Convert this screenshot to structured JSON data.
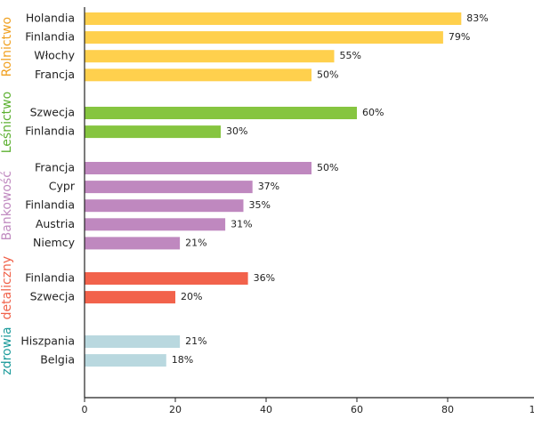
{
  "chart_data": {
    "type": "bar",
    "series": [
      {
        "name": "Rolnictwo",
        "color": "#ffd04d",
        "label_color": "#f0a020",
        "categories": [
          "Holandia",
          "Finlandia",
          "Włochy",
          "Francja"
        ],
        "values": [
          83,
          79,
          55,
          50
        ],
        "value_labels": [
          "83%",
          "79%",
          "55%",
          "50%"
        ]
      },
      {
        "name": "Leśnictwo",
        "color": "#86c540",
        "label_color": "#5cb030",
        "categories": [
          "Szwecja",
          "Finlandia"
        ],
        "values": [
          60,
          30
        ],
        "value_labels": [
          "60%",
          "30%"
        ]
      },
      {
        "name": "Bankowość",
        "color": "#bf88bf",
        "label_color": "#c08ac0",
        "categories": [
          "Francja",
          "Cypr",
          "Finlandia",
          "Austria",
          "Niemcy"
        ],
        "values": [
          50,
          37,
          35,
          31,
          21
        ],
        "value_labels": [
          "50%",
          "37%",
          "35%",
          "31%",
          "21%"
        ]
      },
      {
        "name": "detaliczny",
        "color": "#f2624b",
        "label_color": "#f0624a",
        "categories": [
          "Finlandia",
          "Szwecja"
        ],
        "values": [
          36,
          20
        ],
        "value_labels": [
          "36%",
          "20%"
        ]
      },
      {
        "name": "zdrowia",
        "color": "#b9d8df",
        "label_color": "#1a9a9a",
        "categories": [
          "Hiszpania",
          "Belgia"
        ],
        "values": [
          21,
          18
        ],
        "value_labels": [
          "21%",
          "18%"
        ]
      }
    ],
    "xlim": [
      0,
      100
    ],
    "xticks": [
      0,
      20,
      40,
      60,
      80,
      100
    ]
  }
}
